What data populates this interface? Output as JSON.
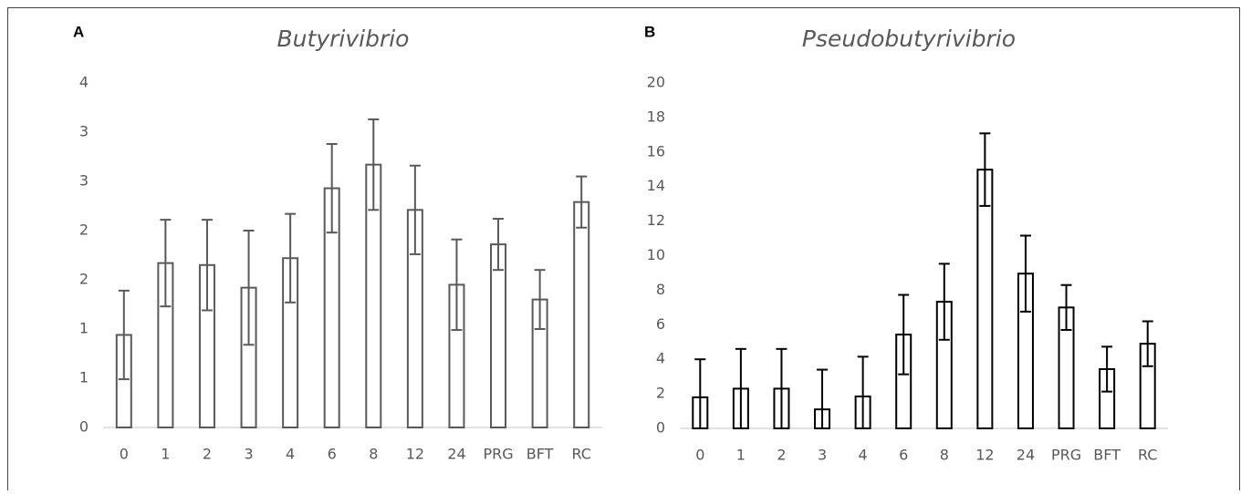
{
  "chart_data": [
    {
      "type": "bar",
      "panel_label": "A",
      "title": "Butyrivibrio",
      "categories": [
        "0",
        "1",
        "2",
        "3",
        "4",
        "6",
        "8",
        "12",
        "24",
        "PRG",
        "BFT",
        "RC"
      ],
      "values": [
        0.94,
        1.67,
        1.65,
        1.42,
        1.72,
        2.43,
        2.67,
        2.21,
        1.45,
        1.86,
        1.3,
        2.29
      ],
      "errors": [
        0.45,
        0.44,
        0.46,
        0.58,
        0.45,
        0.45,
        0.46,
        0.45,
        0.46,
        0.26,
        0.3,
        0.26
      ],
      "color": "#595959",
      "ylim": [
        0,
        3.5
      ],
      "yticks": [
        0,
        {
          "value": 0.5,
          "label": "1"
        },
        {
          "value": 1,
          "label": "1"
        },
        {
          "value": 1.5,
          "label": "2"
        },
        {
          "value": 2,
          "label": "2"
        },
        {
          "value": 2.5,
          "label": "3"
        },
        {
          "value": 3,
          "label": "3"
        },
        {
          "value": 3.5,
          "label": "4"
        }
      ]
    },
    {
      "type": "bar",
      "panel_label": "B",
      "title": "Pseudobutyrivibrio",
      "categories": [
        "0",
        "1",
        "2",
        "3",
        "4",
        "6",
        "8",
        "12",
        "24",
        "PRG",
        "BFT",
        "RC"
      ],
      "values": [
        1.8,
        2.3,
        2.3,
        1.1,
        1.85,
        5.43,
        7.33,
        14.98,
        8.96,
        7.0,
        3.43,
        4.9
      ],
      "errors": [
        2.2,
        2.3,
        2.3,
        2.3,
        2.3,
        2.3,
        2.2,
        2.1,
        2.2,
        1.3,
        1.3,
        1.3
      ],
      "color": "#000000",
      "ylim": [
        0,
        20
      ],
      "yticks": [
        0,
        2,
        4,
        6,
        8,
        10,
        12,
        14,
        16,
        18,
        20
      ]
    }
  ]
}
